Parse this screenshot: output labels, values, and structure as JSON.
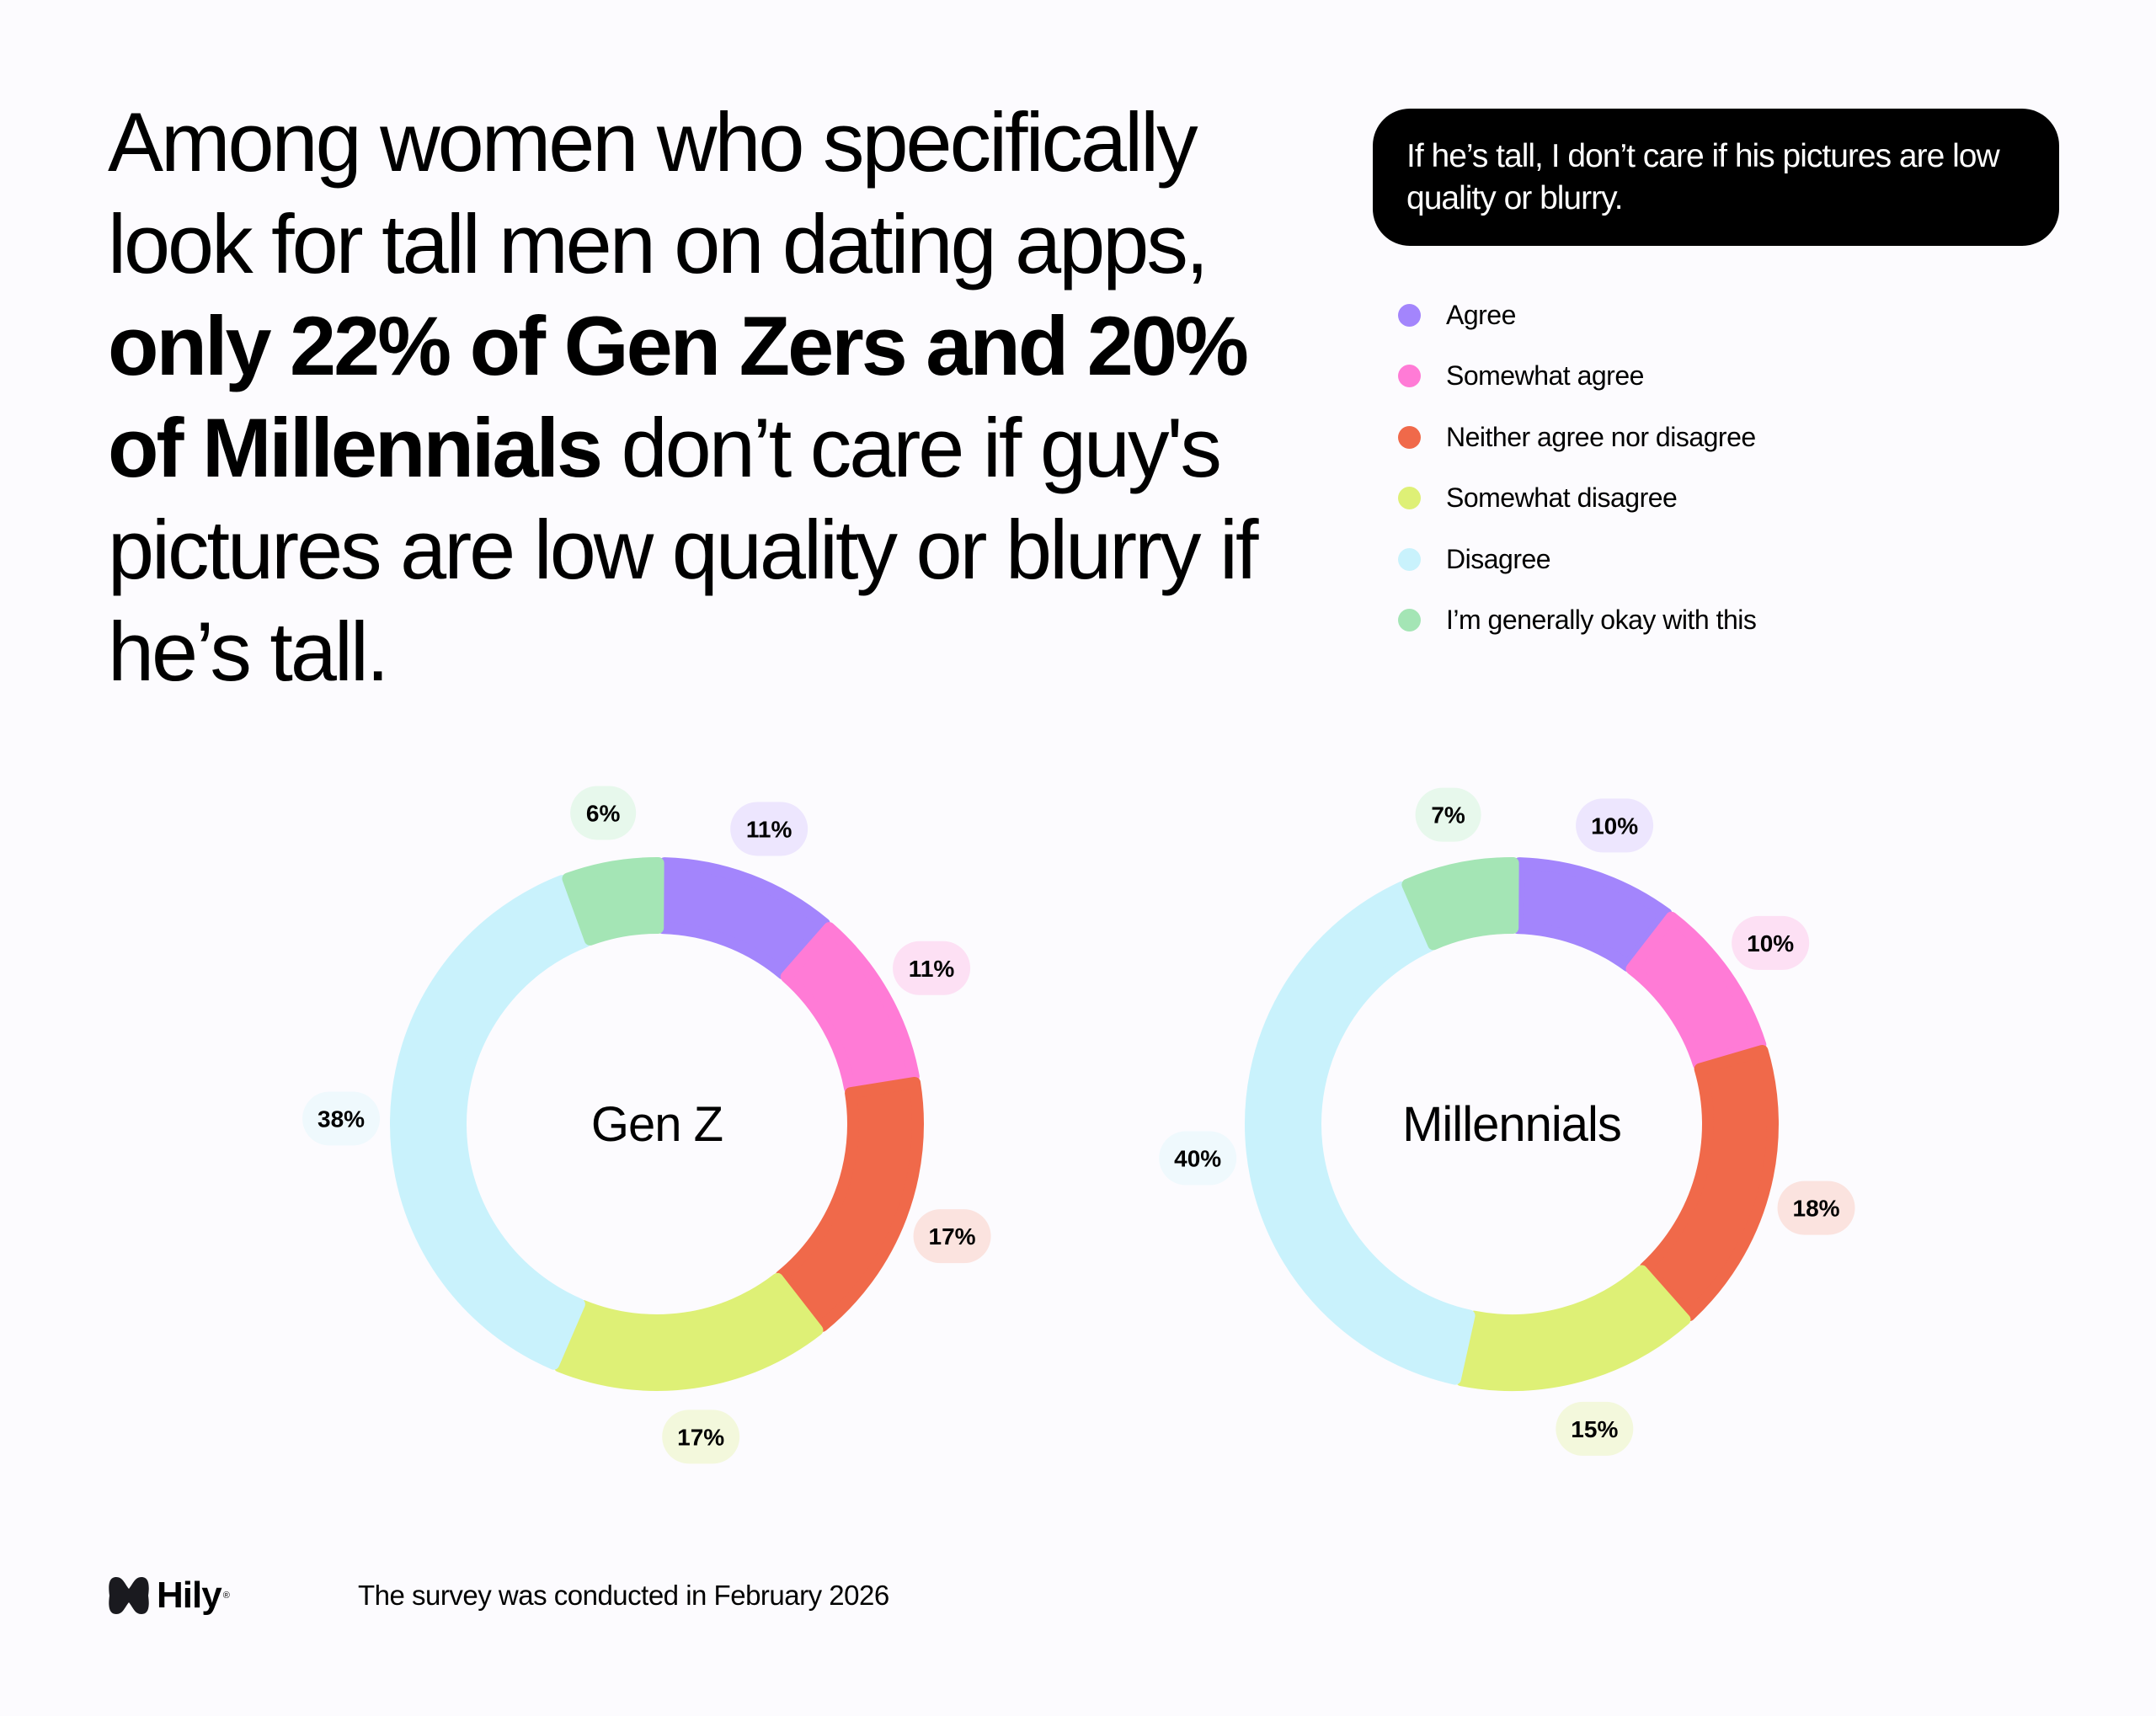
{
  "headline": {
    "part1": "Among women who specifically look for tall men on dating apps, ",
    "bold": "only 22% of Gen Zers and 20% of Millennials",
    "part2": " don’t care if guy's pictures are low quality or blurry if he’s tall."
  },
  "question": "If he’s tall, I don’t care if his pictures are low quality or blurry.",
  "legend": [
    {
      "label": "Agree",
      "color": "#a385fc"
    },
    {
      "label": "Somewhat agree",
      "color": "#ff7bd6"
    },
    {
      "label": "Neither agree nor disagree",
      "color": "#f0694a"
    },
    {
      "label": "Somewhat disagree",
      "color": "#def076"
    },
    {
      "label": "Disagree",
      "color": "#c9f2fc"
    },
    {
      "label": "I’m generally okay with this",
      "color": "#a4e5b5"
    }
  ],
  "chart_data": [
    {
      "type": "pie",
      "title": "Gen Z",
      "categories": [
        "Agree",
        "Somewhat agree",
        "Neither agree nor disagree",
        "Somewhat disagree",
        "Disagree",
        "I’m generally okay with this"
      ],
      "values": [
        11,
        11,
        17,
        17,
        38,
        6
      ],
      "labels": [
        "11%",
        "11%",
        "17%",
        "17%",
        "38%",
        "6%"
      ]
    },
    {
      "type": "pie",
      "title": "Millennials",
      "categories": [
        "Agree",
        "Somewhat agree",
        "Neither agree nor disagree",
        "Somewhat disagree",
        "Disagree",
        "I’m generally okay with this"
      ],
      "values": [
        10,
        10,
        18,
        15,
        40,
        7
      ],
      "labels": [
        "10%",
        "10%",
        "18%",
        "15%",
        "40%",
        "7%"
      ]
    }
  ],
  "label_bg_colors": [
    "#ede6fe",
    "#fde0f4",
    "#fbe3df",
    "#f3f8dc",
    "#eff9fd",
    "#e7f8ec"
  ],
  "footer": {
    "brand": "Hily",
    "brand_mark": "®",
    "note": "The survey was conducted in February 2026"
  }
}
